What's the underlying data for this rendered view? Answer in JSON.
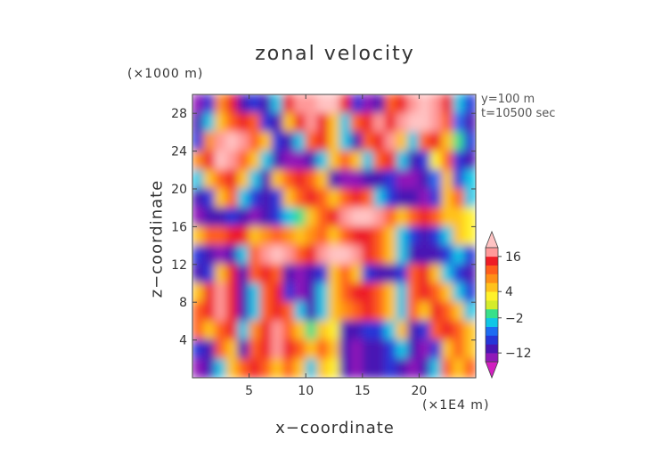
{
  "chart_data": {
    "type": "heatmap",
    "title": "zonal velocity",
    "xlabel": "x−coordinate",
    "ylabel": "z−coordinate",
    "x_unit": "(×1E4 m)",
    "y_unit": "(×1000 m)",
    "annotations": [
      "y=100 m",
      "t=10500 sec"
    ],
    "xlim": [
      0,
      25
    ],
    "ylim": [
      0,
      30
    ],
    "x_ticks": [
      5,
      10,
      15,
      20
    ],
    "x_tick_labels": [
      "5",
      "10",
      "15",
      "20"
    ],
    "y_ticks": [
      4,
      8,
      12,
      16,
      20,
      24,
      28
    ],
    "y_tick_labels": [
      "4",
      "8",
      "12",
      "16",
      "20",
      "24",
      "28"
    ],
    "colorbar": {
      "levels": [
        -20,
        -16,
        -12,
        -8,
        -6,
        -4,
        -2,
        0,
        2,
        4,
        6,
        8,
        12,
        16,
        20
      ],
      "tick_values": [
        16,
        4,
        -2,
        -12
      ],
      "tick_labels": [
        "16",
        "4",
        "−2",
        "−12"
      ],
      "colors": [
        "#d21fc0",
        "#9019b8",
        "#4a16b4",
        "#2636d8",
        "#1d6cf2",
        "#10c6e6",
        "#38e08a",
        "#d4ec2b",
        "#fff12a",
        "#ffc21d",
        "#ff8f17",
        "#ff5e1c",
        "#ee1d26",
        "#ff9a9a",
        "#ffc3c3"
      ],
      "extend": "both"
    },
    "grid": false,
    "field_rows_top_to_bottom": [
      {
        "z": 29,
        "values": [
          -16,
          -8,
          6,
          12,
          -12,
          -8,
          -12,
          -4,
          12,
          16,
          16,
          20,
          20,
          12,
          -8,
          -16,
          -12,
          8,
          12,
          16,
          20,
          16,
          12,
          -4,
          -8
        ]
      },
      {
        "z": 27,
        "values": [
          -12,
          -4,
          4,
          8,
          12,
          8,
          -8,
          -12,
          4,
          12,
          16,
          12,
          4,
          -4,
          8,
          12,
          16,
          12,
          16,
          20,
          20,
          16,
          8,
          -6,
          -12
        ]
      },
      {
        "z": 25,
        "values": [
          -8,
          6,
          16,
          20,
          16,
          8,
          4,
          -8,
          -12,
          -4,
          8,
          12,
          4,
          -4,
          -12,
          8,
          12,
          16,
          4,
          -4,
          8,
          12,
          4,
          -2,
          -8
        ]
      },
      {
        "z": 23,
        "values": [
          6,
          12,
          20,
          16,
          8,
          4,
          -4,
          -12,
          -16,
          -16,
          -12,
          -4,
          4,
          8,
          4,
          -4,
          8,
          12,
          -4,
          -12,
          -8,
          2,
          8,
          -8,
          -12
        ]
      },
      {
        "z": 21,
        "values": [
          -4,
          4,
          8,
          12,
          4,
          -4,
          -12,
          4,
          8,
          12,
          8,
          4,
          -12,
          -16,
          -16,
          -12,
          -12,
          -8,
          -16,
          -16,
          -12,
          -6,
          4,
          -8,
          -4
        ]
      },
      {
        "z": 19,
        "values": [
          -12,
          -8,
          4,
          8,
          -4,
          -8,
          -12,
          -8,
          4,
          8,
          12,
          8,
          4,
          8,
          12,
          8,
          -4,
          -8,
          -12,
          -12,
          -16,
          -8,
          4,
          8,
          -4
        ]
      },
      {
        "z": 17,
        "values": [
          -16,
          -12,
          -12,
          -8,
          -12,
          -16,
          -12,
          -8,
          -4,
          -2,
          4,
          8,
          12,
          16,
          20,
          20,
          16,
          8,
          4,
          8,
          12,
          8,
          4,
          4,
          2
        ]
      },
      {
        "z": 15,
        "values": [
          4,
          8,
          8,
          12,
          12,
          4,
          6,
          8,
          6,
          4,
          6,
          8,
          4,
          8,
          12,
          12,
          8,
          4,
          -4,
          -8,
          -12,
          -8,
          -4,
          4,
          2
        ]
      },
      {
        "z": 13,
        "values": [
          -8,
          -12,
          -16,
          -12,
          -4,
          8,
          16,
          20,
          16,
          8,
          12,
          16,
          20,
          20,
          16,
          12,
          8,
          4,
          -4,
          -12,
          -12,
          -12,
          -8,
          -4,
          -8
        ]
      },
      {
        "z": 11,
        "values": [
          -12,
          -8,
          4,
          12,
          -12,
          8,
          12,
          8,
          -12,
          -16,
          -12,
          -8,
          4,
          8,
          4,
          -8,
          -12,
          -12,
          -8,
          8,
          12,
          4,
          -4,
          -8,
          -12
        ]
      },
      {
        "z": 9,
        "values": [
          4,
          12,
          16,
          12,
          -12,
          -4,
          8,
          12,
          -8,
          -16,
          -12,
          -4,
          4,
          8,
          12,
          12,
          8,
          4,
          -4,
          8,
          12,
          8,
          4,
          -4,
          -8
        ]
      },
      {
        "z": 7,
        "values": [
          8,
          12,
          16,
          12,
          -12,
          -4,
          8,
          12,
          8,
          -4,
          -12,
          -4,
          4,
          6,
          8,
          12,
          8,
          4,
          -4,
          8,
          4,
          12,
          8,
          4,
          -4
        ]
      },
      {
        "z": 5,
        "values": [
          8,
          4,
          8,
          12,
          -4,
          6,
          12,
          16,
          8,
          4,
          -2,
          4,
          2,
          -12,
          -12,
          -8,
          -8,
          -4,
          4,
          -12,
          -8,
          8,
          12,
          8,
          4
        ]
      },
      {
        "z": 3,
        "values": [
          -8,
          -12,
          8,
          4,
          -12,
          8,
          12,
          16,
          12,
          8,
          4,
          8,
          4,
          -12,
          -16,
          -12,
          -12,
          -8,
          -4,
          -12,
          -16,
          -8,
          4,
          8,
          4
        ]
      },
      {
        "z": 1,
        "values": [
          -16,
          -12,
          -4,
          4,
          8,
          12,
          8,
          4,
          8,
          4,
          -4,
          4,
          2,
          -12,
          -16,
          -12,
          -12,
          -8,
          -12,
          -16,
          -12,
          -4,
          8,
          4,
          8
        ]
      }
    ]
  }
}
